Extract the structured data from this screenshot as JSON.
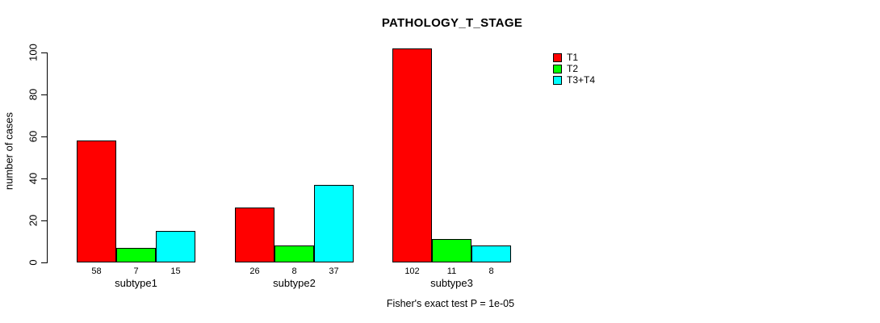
{
  "chart_data": {
    "type": "bar",
    "title": "PATHOLOGY_T_STAGE",
    "ylabel": "number of cases",
    "xlabel": "",
    "categories": [
      "subtype1",
      "subtype2",
      "subtype3"
    ],
    "series": [
      {
        "name": "T1",
        "color": "#ff0000",
        "values": [
          58,
          26,
          102
        ]
      },
      {
        "name": "T2",
        "color": "#00ff00",
        "values": [
          7,
          8,
          11
        ]
      },
      {
        "name": "T3+T4",
        "color": "#00ffff",
        "values": [
          15,
          37,
          8
        ]
      }
    ],
    "bar_value_labels": [
      [
        "58",
        "7",
        "15"
      ],
      [
        "26",
        "8",
        "37"
      ],
      [
        "102",
        "11",
        "8"
      ]
    ],
    "yticks": [
      "0",
      "20",
      "40",
      "60",
      "80",
      "100"
    ],
    "ylim": [
      0,
      100
    ],
    "grid": false,
    "legend_position": "right",
    "bar_border_color": "#000000",
    "annotation": "Fisher's exact test P = 1e-05"
  }
}
